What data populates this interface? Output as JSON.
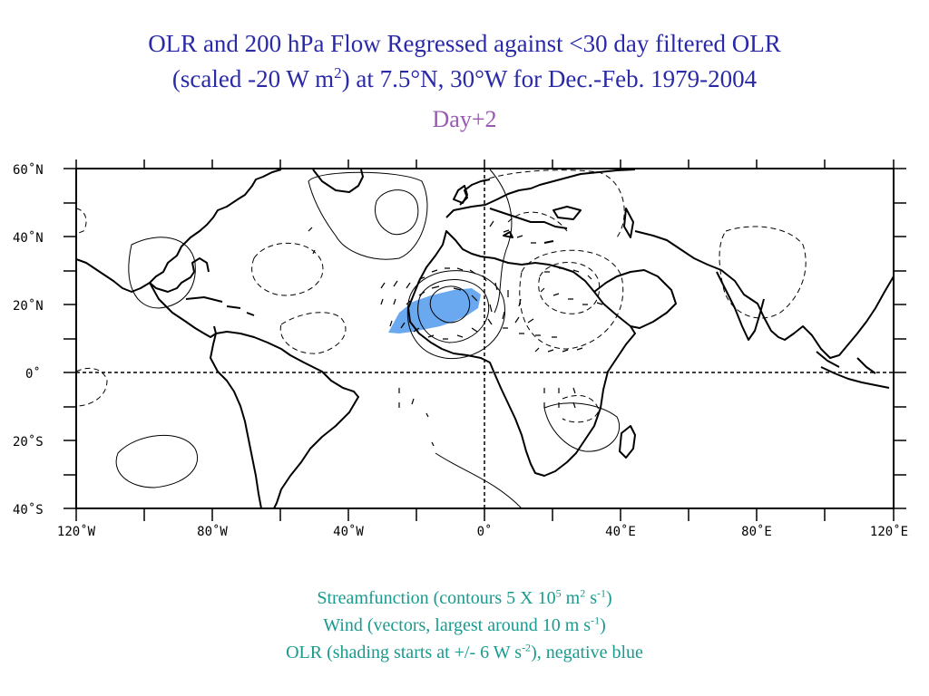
{
  "title": {
    "line1": "OLR and 200 hPa Flow Regressed against <30 day filtered OLR",
    "line2_a": "(scaled -20 W m",
    "line2_sup": "2",
    "line2_b": ") at 7.5°N, 30°W for Dec.-Feb. 1979-2004"
  },
  "subtitle": "Day+2",
  "map": {
    "lat_labels": [
      "60˚N",
      "40˚N",
      "20˚N",
      "0˚",
      "20˚S",
      "40˚S"
    ],
    "lon_labels": [
      "120˚W",
      "80˚W",
      "40˚W",
      "0˚",
      "40˚E",
      "80˚E",
      "120˚E"
    ],
    "olr_shading_color": "#6aa8f0",
    "coast_color": "#000000"
  },
  "caption": {
    "line1_a": "Streamfunction (contours 5 X 10",
    "line1_sup1": "5",
    "line1_b": " m",
    "line1_sup2": "2",
    "line1_c": " s",
    "line1_sup3": "-1",
    "line1_d": ")",
    "line2_a": "Wind (vectors, largest around 10 m s",
    "line2_sup": "-1",
    "line2_b": ")",
    "line3_a": "OLR (shading starts at +/- 6 W s",
    "line3_sup": "-2",
    "line3_b": "), negative blue"
  }
}
